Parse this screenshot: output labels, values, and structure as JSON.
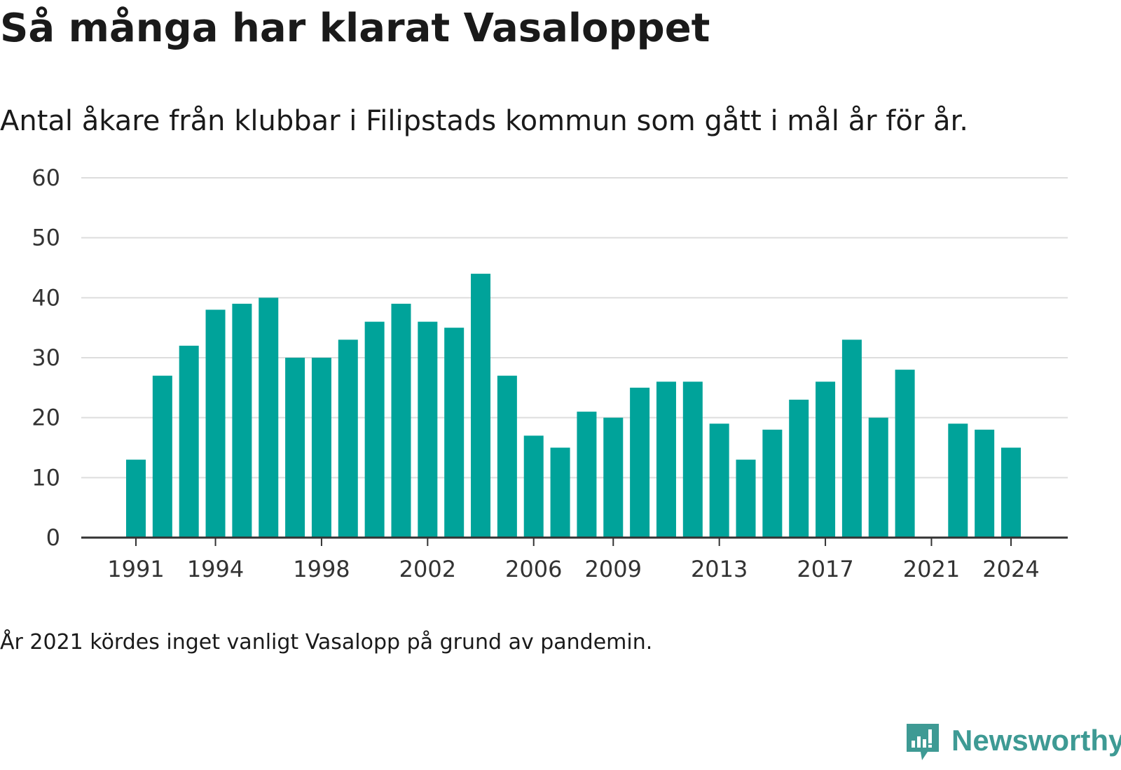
{
  "title": "Så många har klarat Vasaloppet",
  "subtitle": "Antal åkare från klubbar i Filipstads kommun som gått i mål år för år.",
  "note": "År 2021 kördes inget vanligt Vasalopp på grund av pandemin.",
  "logo": {
    "text": "Newsworthy",
    "icon": "chart-speech-bubble-icon",
    "color": "#3e9a94"
  },
  "colors": {
    "bar": "#00a39a",
    "grid": "#dddddd",
    "axis": "#333333"
  },
  "chart_data": {
    "type": "bar",
    "categories": [
      1991,
      1992,
      1993,
      1994,
      1995,
      1996,
      1997,
      1998,
      1999,
      2000,
      2001,
      2002,
      2003,
      2004,
      2005,
      2006,
      2007,
      2008,
      2009,
      2010,
      2011,
      2012,
      2013,
      2014,
      2015,
      2016,
      2017,
      2018,
      2019,
      2020,
      2021,
      2022,
      2023,
      2024
    ],
    "values": [
      13,
      27,
      32,
      38,
      39,
      40,
      30,
      30,
      33,
      36,
      39,
      36,
      35,
      44,
      27,
      17,
      15,
      21,
      20,
      25,
      26,
      26,
      19,
      13,
      18,
      23,
      26,
      33,
      20,
      28,
      null,
      19,
      18,
      15
    ],
    "x_tick_labels": [
      "1991",
      "1994",
      "1998",
      "2002",
      "2006",
      "2009",
      "2013",
      "2017",
      "2021",
      "2024"
    ],
    "y_ticks": [
      0,
      10,
      20,
      30,
      40,
      50,
      60
    ],
    "ylim": [
      0,
      60
    ],
    "grid": true,
    "legend": "none"
  }
}
